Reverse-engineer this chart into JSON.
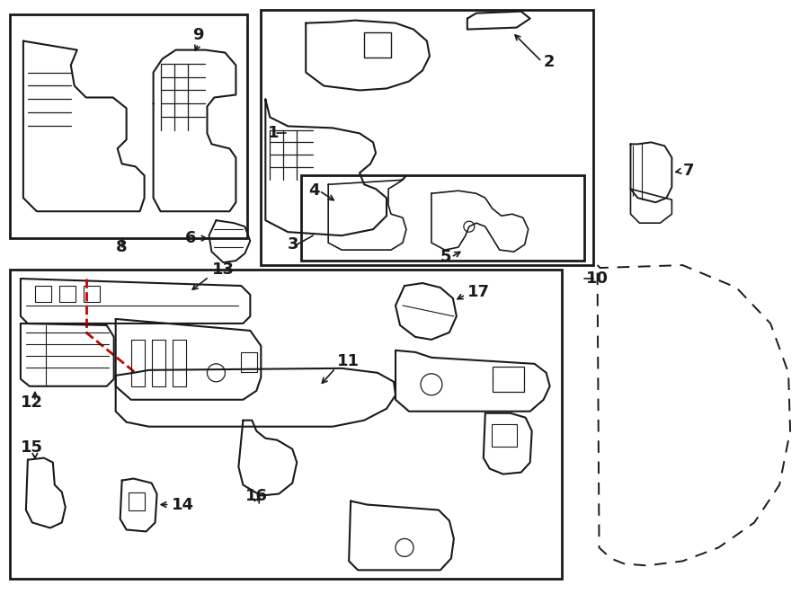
{
  "bg_color": "#ffffff",
  "line_color": "#1a1a1a",
  "red_color": "#cc0000",
  "fig_width": 9.0,
  "fig_height": 6.61,
  "dpi": 100
}
